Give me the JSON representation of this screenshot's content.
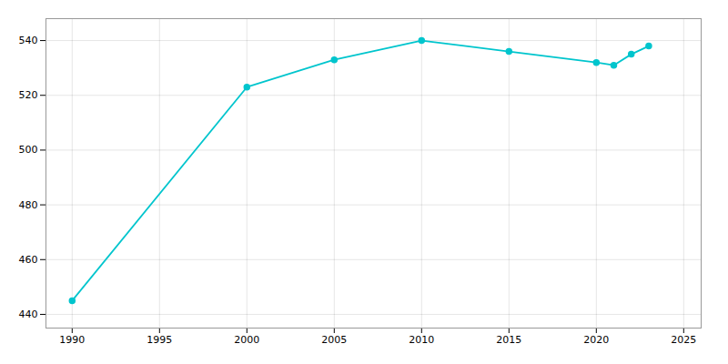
{
  "chart_data": {
    "type": "line",
    "x": [
      1990,
      2000,
      2005,
      2010,
      2015,
      2020,
      2021,
      2022,
      2023
    ],
    "values": [
      445,
      523,
      533,
      540,
      536,
      532,
      531,
      535,
      538
    ],
    "color": "#00c5cd",
    "marker": "circle",
    "xlim": [
      1988.5,
      2026
    ],
    "ylim": [
      435,
      548
    ],
    "xticks": [
      1990,
      1995,
      2000,
      2005,
      2010,
      2015,
      2020,
      2025
    ],
    "yticks": [
      440,
      460,
      480,
      500,
      520,
      540
    ],
    "grid": true
  }
}
